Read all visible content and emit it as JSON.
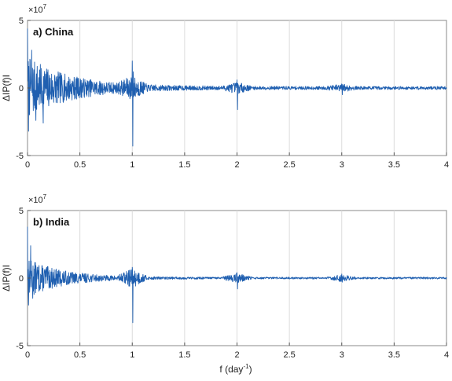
{
  "chart_data": [
    {
      "type": "line",
      "panel_label": "a) China",
      "xlabel": "",
      "ylabel": "ΔIP(f)I",
      "y_multiplier": "×10",
      "y_multiplier_exp": "7",
      "xlim": [
        0,
        4
      ],
      "ylim": [
        -5,
        5
      ],
      "x_ticks": [
        "0",
        "0.5",
        "1",
        "1.5",
        "2",
        "2.5",
        "3",
        "3.5",
        "4"
      ],
      "y_ticks": [
        "5",
        "0",
        "-5"
      ],
      "grid": "vertical",
      "line_color": "#1f5fb0",
      "noise": {
        "base": 2.2,
        "decay": 2.4,
        "floor": 0.12,
        "seed": 7
      },
      "spikes": [
        {
          "x": 0.0,
          "y": 4.4
        },
        {
          "x": 0.01,
          "y": -3.2
        },
        {
          "x": 0.04,
          "y": 2.8
        },
        {
          "x": 0.08,
          "y": -2.4
        },
        {
          "x": 0.15,
          "y": -2.6
        },
        {
          "x": 1.0,
          "y": 2.0
        },
        {
          "x": 1.005,
          "y": -4.3
        },
        {
          "x": 1.01,
          "y": 1.2
        },
        {
          "x": 2.0,
          "y": 0.6
        },
        {
          "x": 2.005,
          "y": -1.6
        },
        {
          "x": 3.0,
          "y": 0.3
        },
        {
          "x": 3.005,
          "y": -0.5
        }
      ]
    },
    {
      "type": "line",
      "panel_label": "b) India",
      "xlabel": "f (day",
      "xlabel_sup": "-1",
      "xlabel_close": ")",
      "ylabel": "ΔIP(f)I",
      "y_multiplier": "×10",
      "y_multiplier_exp": "7",
      "xlim": [
        0,
        4
      ],
      "ylim": [
        -5,
        5
      ],
      "x_ticks": [
        "0",
        "0.5",
        "1",
        "1.5",
        "2",
        "2.5",
        "3",
        "3.5",
        "4"
      ],
      "y_ticks": [
        "5",
        "0",
        "-5"
      ],
      "grid": "vertical",
      "line_color": "#1f5fb0",
      "noise": {
        "base": 1.4,
        "decay": 3.0,
        "floor": 0.07,
        "seed": 13
      },
      "spikes": [
        {
          "x": 0.0,
          "y": 3.8
        },
        {
          "x": 0.01,
          "y": -2.0
        },
        {
          "x": 0.03,
          "y": 2.4
        },
        {
          "x": 0.05,
          "y": -1.5
        },
        {
          "x": 1.0,
          "y": 0.8
        },
        {
          "x": 1.005,
          "y": -3.3
        },
        {
          "x": 2.0,
          "y": 0.4
        },
        {
          "x": 2.005,
          "y": -0.8
        },
        {
          "x": 3.0,
          "y": 0.3
        },
        {
          "x": 3.005,
          "y": -0.3
        }
      ]
    }
  ]
}
